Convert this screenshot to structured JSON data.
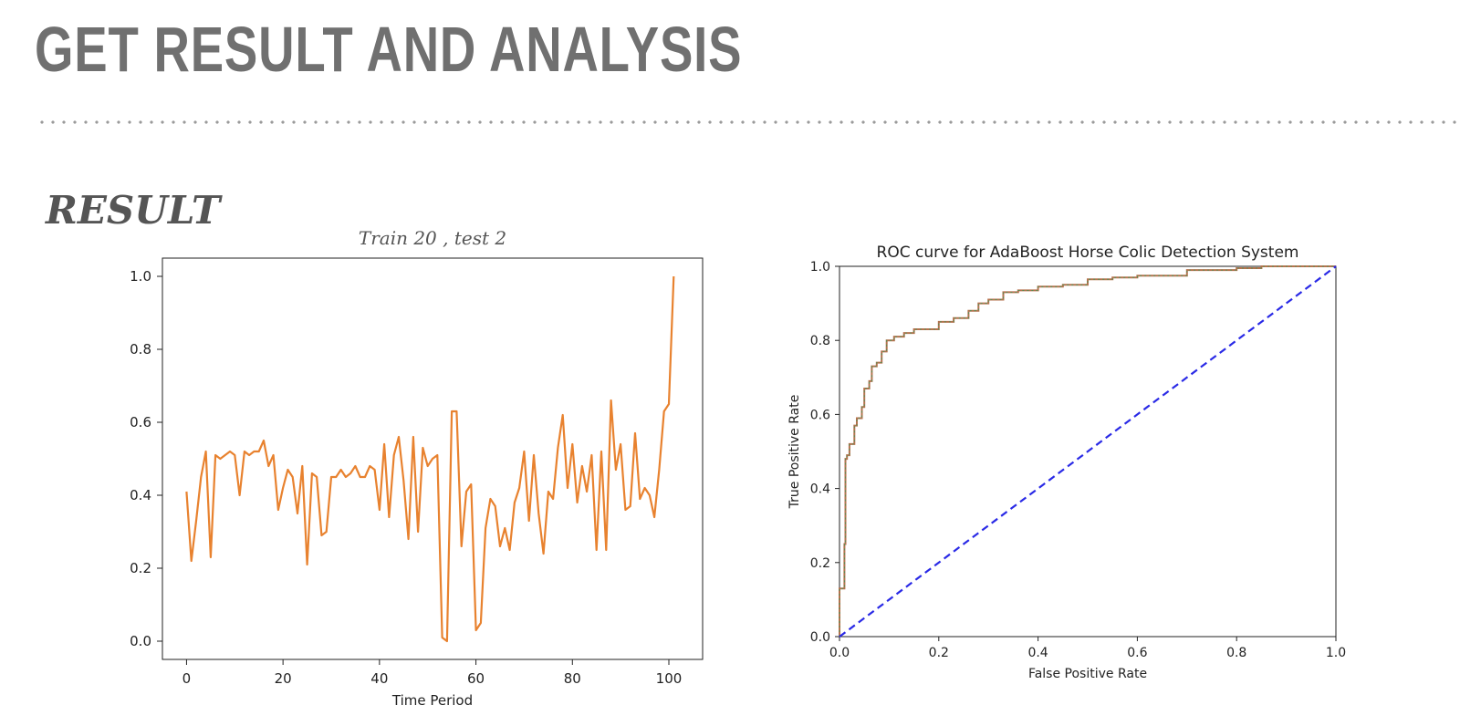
{
  "slide": {
    "title": "GET RESULT AND ANALYSIS",
    "section_heading": "RESULT"
  },
  "chart_data": [
    {
      "type": "line",
      "title": "Train 20 , test 2",
      "xlabel": "Time Period",
      "ylabel": "",
      "xlim": [
        -5,
        107
      ],
      "ylim": [
        -0.05,
        1.05
      ],
      "xticks": [
        0,
        20,
        40,
        60,
        80,
        100
      ],
      "yticks": [
        0.0,
        0.2,
        0.4,
        0.6,
        0.8,
        1.0
      ],
      "grid": false,
      "color": "#e8822f",
      "series": [
        {
          "x": [
            0,
            1,
            2,
            3,
            4,
            5,
            6,
            7,
            8,
            9,
            10,
            11,
            12,
            13,
            14,
            15,
            16,
            17,
            18,
            19,
            20,
            21,
            22,
            23,
            24,
            25,
            26,
            27,
            28,
            29,
            30,
            31,
            32,
            33,
            34,
            35,
            36,
            37,
            38,
            39,
            40,
            41,
            42,
            43,
            44,
            45,
            46,
            47,
            48,
            49,
            50,
            51,
            52,
            53,
            54,
            55,
            56,
            57,
            58,
            59,
            60,
            61,
            62,
            63,
            64,
            65,
            66,
            67,
            68,
            69,
            70,
            71,
            72,
            73,
            74,
            75,
            76,
            77,
            78,
            79,
            80,
            81,
            82,
            83,
            84,
            85,
            86,
            87,
            88,
            89,
            90,
            91,
            92,
            93,
            94,
            95,
            96,
            97,
            98,
            99,
            100,
            101
          ],
          "y": [
            0.41,
            0.22,
            0.33,
            0.45,
            0.52,
            0.23,
            0.51,
            0.5,
            0.51,
            0.52,
            0.51,
            0.4,
            0.52,
            0.51,
            0.52,
            0.52,
            0.55,
            0.48,
            0.51,
            0.36,
            0.42,
            0.47,
            0.45,
            0.35,
            0.48,
            0.21,
            0.46,
            0.45,
            0.29,
            0.3,
            0.45,
            0.45,
            0.47,
            0.45,
            0.46,
            0.48,
            0.45,
            0.45,
            0.48,
            0.47,
            0.36,
            0.54,
            0.34,
            0.51,
            0.56,
            0.44,
            0.28,
            0.56,
            0.3,
            0.53,
            0.48,
            0.5,
            0.51,
            0.01,
            0.0,
            0.63,
            0.63,
            0.26,
            0.41,
            0.43,
            0.03,
            0.05,
            0.31,
            0.39,
            0.37,
            0.26,
            0.31,
            0.25,
            0.38,
            0.42,
            0.52,
            0.33,
            0.51,
            0.35,
            0.24,
            0.41,
            0.39,
            0.53,
            0.62,
            0.42,
            0.54,
            0.38,
            0.48,
            0.41,
            0.51,
            0.25,
            0.52,
            0.25,
            0.66,
            0.47,
            0.54,
            0.36,
            0.37,
            0.57,
            0.39,
            0.42,
            0.4,
            0.34,
            0.47,
            0.63,
            0.65,
            1.0
          ]
        }
      ]
    },
    {
      "type": "line",
      "title": "ROC curve for AdaBoost Horse Colic Detection System",
      "xlabel": "False Positive Rate",
      "ylabel": "True Positive Rate",
      "xlim": [
        0.0,
        1.0
      ],
      "ylim": [
        0.0,
        1.0
      ],
      "xticks": [
        0.0,
        0.2,
        0.4,
        0.6,
        0.8,
        1.0
      ],
      "xtick_labels": [
        "0.0",
        "0.2",
        "0.4",
        "0.6",
        "0.8",
        "1.0"
      ],
      "yticks": [
        0.0,
        0.2,
        0.4,
        0.6,
        0.8,
        1.0
      ],
      "grid": false,
      "series": [
        {
          "color": "#b5724e",
          "style": "step",
          "x": [
            0.0,
            0.01,
            0.012,
            0.015,
            0.02,
            0.03,
            0.035,
            0.045,
            0.05,
            0.06,
            0.065,
            0.075,
            0.085,
            0.095,
            0.11,
            0.12,
            0.13,
            0.15,
            0.17,
            0.2,
            0.23,
            0.26,
            0.28,
            0.3,
            0.33,
            0.36,
            0.4,
            0.45,
            0.5,
            0.55,
            0.6,
            0.7,
            0.8,
            0.85,
            0.9,
            1.0
          ],
          "y": [
            0.0,
            0.13,
            0.25,
            0.48,
            0.49,
            0.52,
            0.57,
            0.59,
            0.62,
            0.67,
            0.69,
            0.73,
            0.74,
            0.77,
            0.8,
            0.81,
            0.81,
            0.82,
            0.83,
            0.83,
            0.85,
            0.86,
            0.88,
            0.9,
            0.91,
            0.93,
            0.935,
            0.945,
            0.95,
            0.965,
            0.97,
            0.975,
            0.99,
            0.995,
            1.0,
            1.0
          ]
        },
        {
          "color": "#2a2ae6",
          "style": "dashed",
          "x": [
            0.0,
            1.0
          ],
          "y": [
            0.0,
            1.0
          ]
        }
      ]
    }
  ]
}
